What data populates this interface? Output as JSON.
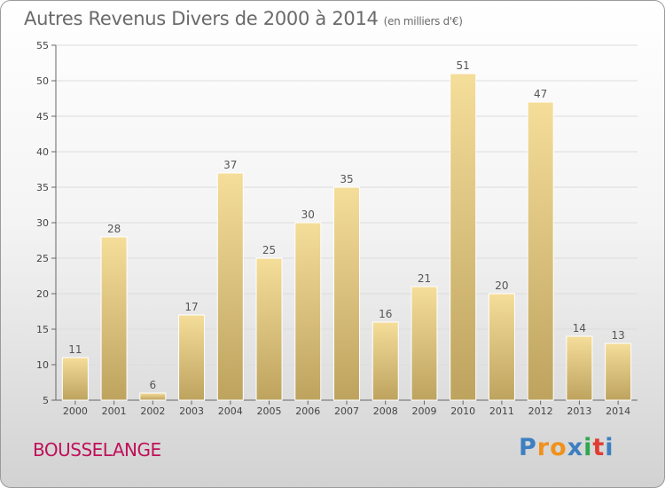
{
  "header": {
    "title": "Autres Revenus Divers de 2000 à 2014",
    "subtitle": "(en milliers d'€)"
  },
  "footer": {
    "commune": "BOUSSELANGE",
    "logo_text": "Proxiti"
  },
  "colors": {
    "commune": "#c0105a",
    "bar_light": "#f5dd9a",
    "bar_dark": "#bda35e",
    "logo_letters": [
      "#3d7fc1",
      "#f0911c",
      "#f0911c",
      "#3d7fc1",
      "#2fa84f",
      "#e03c31",
      "#3d7fc1"
    ]
  },
  "chart_data": {
    "type": "bar",
    "title": "Autres Revenus Divers de 2000 à 2014",
    "subtitle": "(en milliers d'€)",
    "categories": [
      "2000",
      "2001",
      "2002",
      "2003",
      "2004",
      "2005",
      "2006",
      "2007",
      "2008",
      "2009",
      "2010",
      "2011",
      "2012",
      "2013",
      "2014"
    ],
    "values": [
      11,
      28,
      6,
      17,
      37,
      25,
      30,
      35,
      16,
      21,
      51,
      20,
      47,
      14,
      13
    ],
    "ylim": [
      5,
      55
    ],
    "yticks": [
      5,
      10,
      15,
      20,
      25,
      30,
      35,
      40,
      45,
      50,
      55
    ],
    "grid": true,
    "xlabel": "",
    "ylabel": ""
  }
}
